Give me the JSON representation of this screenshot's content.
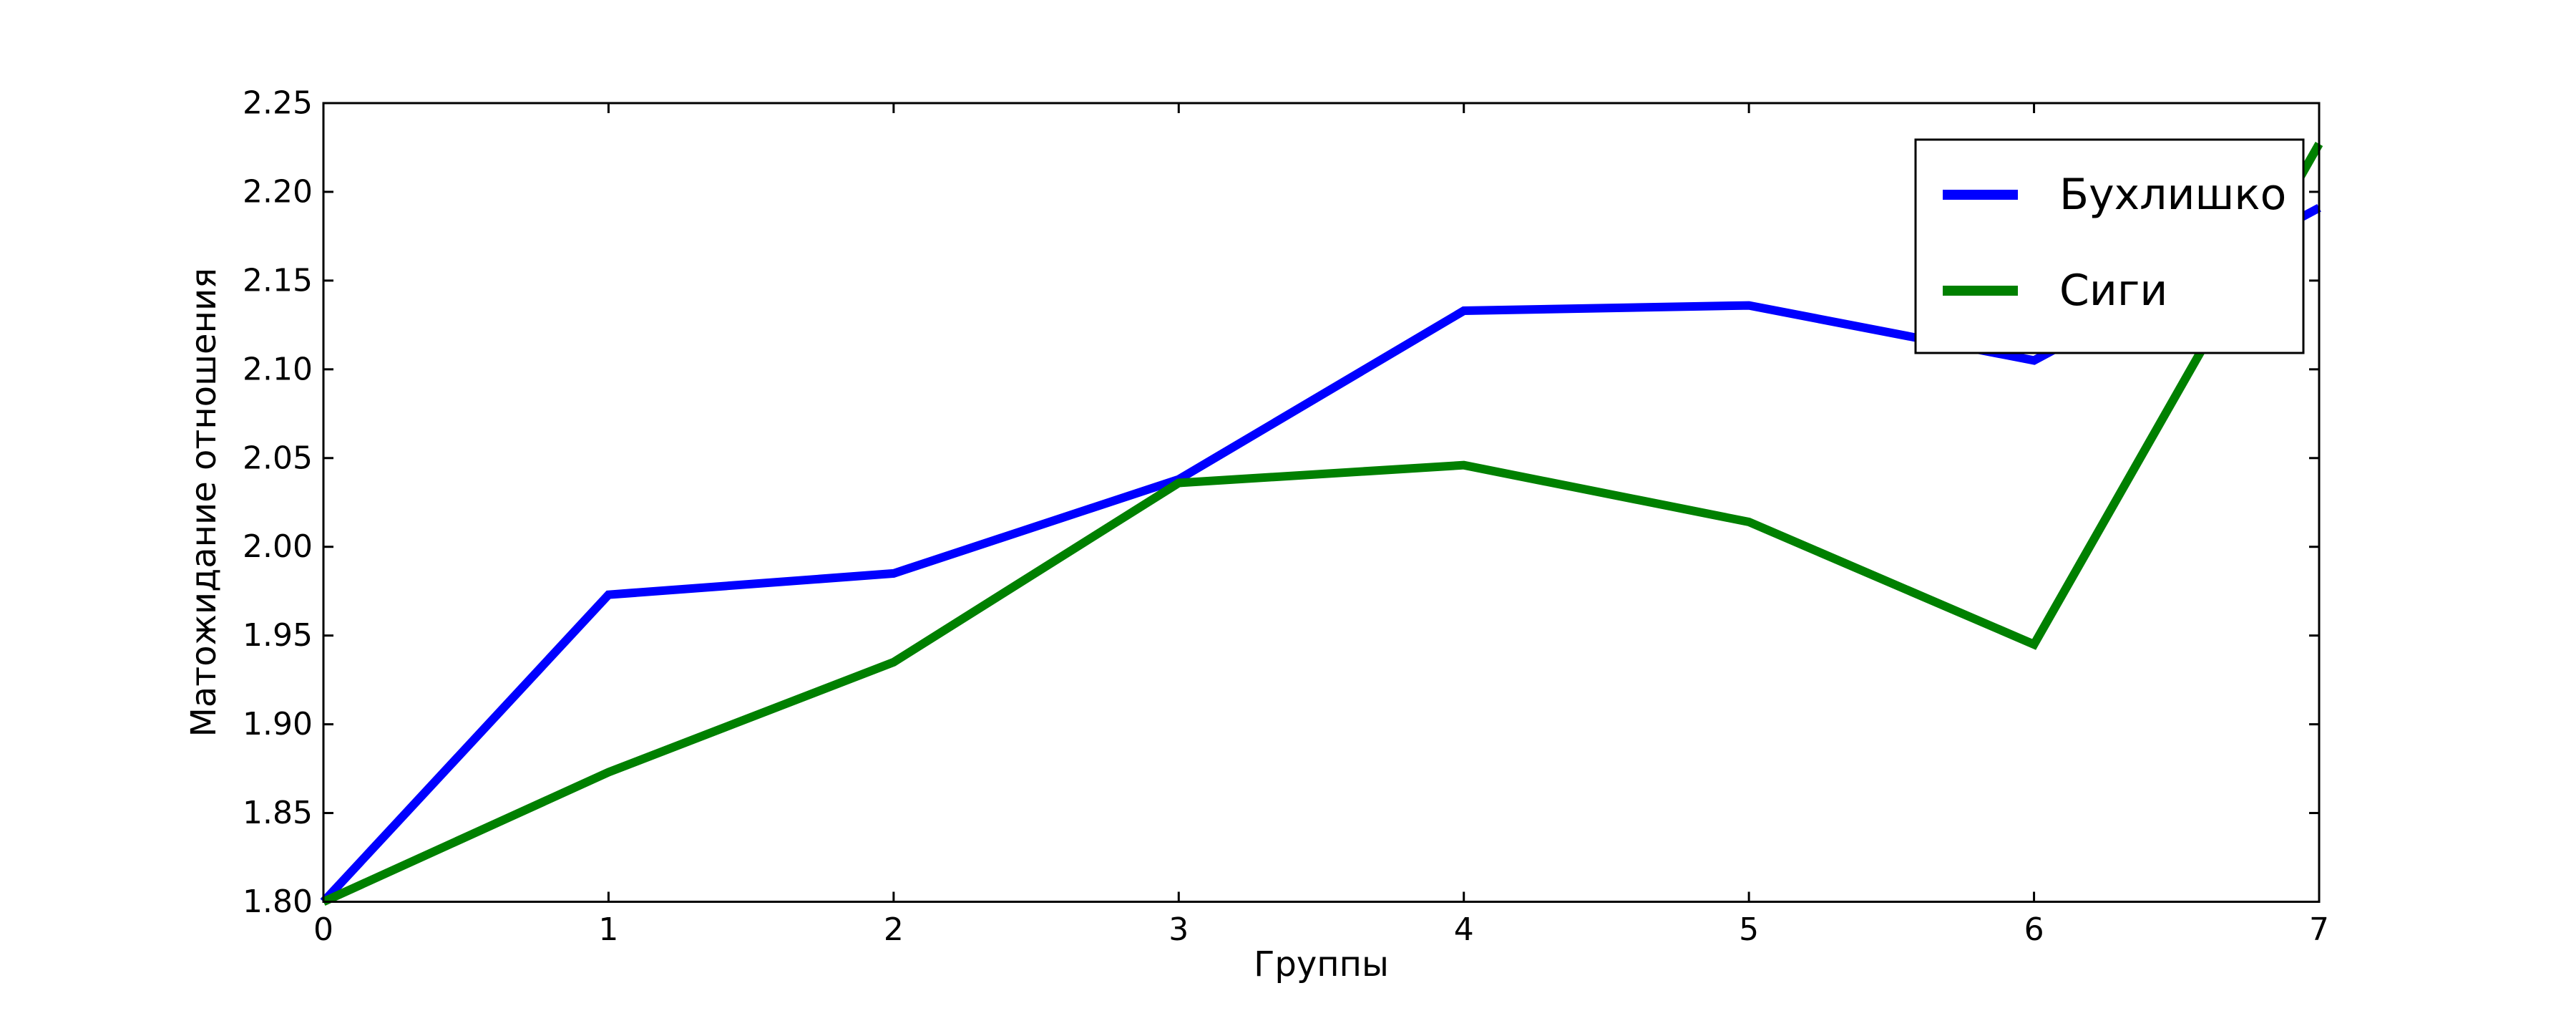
{
  "chart_data": {
    "type": "line",
    "x": [
      0,
      1,
      2,
      3,
      4,
      5,
      6,
      7
    ],
    "series": [
      {
        "name": "Бухлишко",
        "color": "#0000ff",
        "values": [
          1.8,
          1.973,
          1.985,
          2.038,
          2.133,
          2.136,
          2.105,
          2.191
        ]
      },
      {
        "name": "Сиги",
        "color": "#008000",
        "values": [
          1.8,
          1.873,
          1.935,
          2.036,
          2.046,
          2.014,
          1.945,
          2.227
        ]
      }
    ],
    "title": "",
    "xlabel": "Группы",
    "ylabel": "Матожидание отношения",
    "xlim": [
      0,
      7
    ],
    "ylim": [
      1.8,
      2.25
    ],
    "xticks": [
      0,
      1,
      2,
      3,
      4,
      5,
      6,
      7
    ],
    "ytick_step": 0.05,
    "ytick_labels": [
      "1.80",
      "1.85",
      "1.90",
      "1.95",
      "2.00",
      "2.05",
      "2.10",
      "2.15",
      "2.20",
      "2.25"
    ],
    "grid": false,
    "legend_position": "top-right",
    "legend_entries": [
      "Бухлишко",
      "Сиги"
    ],
    "axis_color": "#000000",
    "background_color": "#ffffff"
  }
}
